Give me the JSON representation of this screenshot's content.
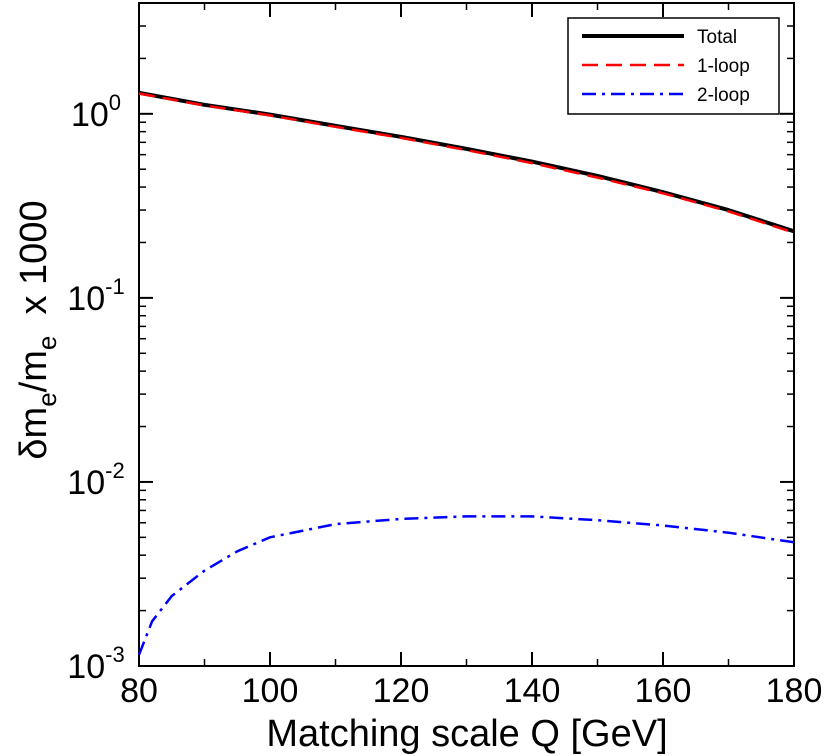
{
  "chart_data": {
    "type": "line",
    "xlabel": "Matching scale Q  [GeV]",
    "ylabel": {
      "prefix": "δm",
      "sub1": "e",
      "mid": "/m",
      "sub2": "e",
      "suffix": "  x 1000"
    },
    "xlim": [
      80,
      180
    ],
    "ylim": [
      0.001,
      4
    ],
    "yscale": "log",
    "x_ticks": [
      80,
      100,
      120,
      140,
      160,
      180
    ],
    "x_tick_labels": [
      "80",
      "100",
      "120",
      "140",
      "160",
      "180"
    ],
    "y_ticks": [
      {
        "value": 1,
        "base": "10",
        "exp": "0"
      },
      {
        "value": 0.1,
        "base": "10",
        "exp": "-1"
      },
      {
        "value": 0.01,
        "base": "10",
        "exp": "-2"
      },
      {
        "value": 0.001,
        "base": "10",
        "exp": "-3"
      }
    ],
    "legend_position": "top-right",
    "series": [
      {
        "name": "Total",
        "color": "#000000",
        "style": "solid",
        "x": [
          80,
          90,
          100,
          110,
          120,
          130,
          140,
          150,
          160,
          170,
          180
        ],
        "y": [
          1.3,
          1.12,
          0.99,
          0.86,
          0.75,
          0.645,
          0.55,
          0.46,
          0.375,
          0.3,
          0.23
        ]
      },
      {
        "name": "1-loop",
        "color": "#ff0000",
        "style": "dashed",
        "x": [
          80,
          90,
          100,
          110,
          120,
          130,
          140,
          150,
          160,
          170,
          180
        ],
        "y": [
          1.29,
          1.11,
          0.98,
          0.85,
          0.74,
          0.635,
          0.54,
          0.45,
          0.37,
          0.295,
          0.226
        ]
      },
      {
        "name": "2-loop",
        "color": "#0000ff",
        "style": "dashdot",
        "x": [
          80,
          82,
          85,
          90,
          95,
          100,
          110,
          120,
          130,
          140,
          150,
          160,
          170,
          180
        ],
        "y": [
          0.00115,
          0.00175,
          0.0024,
          0.0033,
          0.0042,
          0.005,
          0.0059,
          0.0063,
          0.0065,
          0.0065,
          0.0062,
          0.0058,
          0.0053,
          0.0047
        ]
      }
    ]
  }
}
